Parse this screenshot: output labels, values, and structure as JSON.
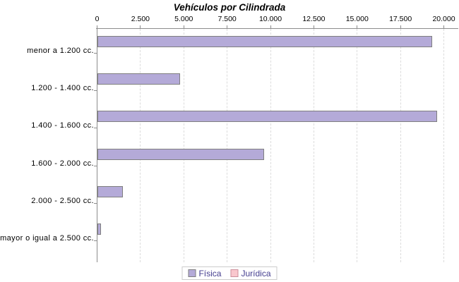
{
  "chart_data": {
    "type": "bar",
    "orientation": "horizontal",
    "title": "Vehículos por Cilindrada",
    "categories": [
      "menor a 1.200 cc.",
      "1.200 - 1.400 cc.",
      "1.400 - 1.600 cc.",
      "1.600 - 2.000 cc.",
      "2.000 - 2.500 cc.",
      "mayor o igual a 2.500 cc."
    ],
    "series": [
      {
        "name": "Física",
        "values": [
          19300,
          4750,
          19600,
          9600,
          1450,
          200
        ],
        "fill": "#b4aad8",
        "outline": "#7f7f7f"
      },
      {
        "name": "Jurídica",
        "values": [
          0,
          0,
          0,
          0,
          0,
          0
        ],
        "fill": "#f9c7cd",
        "outline": "#cc8f9b"
      }
    ],
    "value_axis": {
      "position": "top",
      "min": 0,
      "max": 20000,
      "tick_interval": 2500,
      "tick_labels": [
        "0",
        "2.500",
        "5.000",
        "7.500",
        "10.000",
        "12.500",
        "15.000",
        "17.500",
        "20.000"
      ]
    },
    "grid": true,
    "legend_position": "bottom",
    "colors": {
      "grid": "#dcdcdc",
      "axis": "#8c8c8c",
      "tick_label": "#000000",
      "legend_text": "#443d8f",
      "legend_border": "#cccccc",
      "background": "#ffffff"
    }
  }
}
